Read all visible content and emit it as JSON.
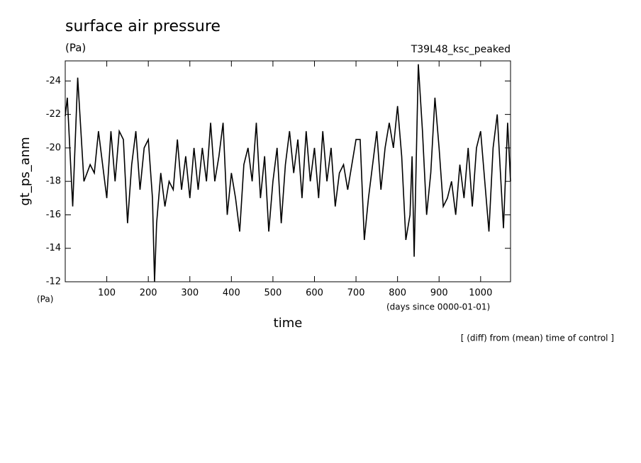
{
  "chart_data": {
    "type": "line",
    "title": "surface air pressure",
    "units": "(Pa)",
    "run_label": "T39L48_ksc_peaked",
    "ylabel": "gt_ps_anm",
    "y_unit_label": "(Pa)",
    "x_unit_label": "(days since 0000-01-01)",
    "xlabel": "time",
    "note": "[ (diff) from (mean) time of control ]",
    "xlim": [
      0,
      1072
    ],
    "ylim": [
      -12,
      -25.2
    ],
    "xticks": [
      100,
      200,
      300,
      400,
      500,
      600,
      700,
      800,
      900,
      1000
    ],
    "yticks": [
      -24,
      -22,
      -20,
      -18,
      -16,
      -14,
      -12
    ],
    "series": [
      {
        "name": "gt_ps_anm",
        "color": "#000000",
        "x": [
          0,
          5,
          18,
          30,
          45,
          60,
          70,
          80,
          90,
          100,
          110,
          120,
          130,
          140,
          150,
          160,
          170,
          180,
          190,
          200,
          210,
          215,
          220,
          230,
          240,
          250,
          260,
          270,
          280,
          290,
          300,
          310,
          320,
          330,
          340,
          350,
          360,
          370,
          380,
          390,
          400,
          410,
          420,
          430,
          440,
          450,
          460,
          470,
          480,
          490,
          500,
          510,
          520,
          530,
          540,
          550,
          560,
          570,
          580,
          590,
          600,
          610,
          620,
          630,
          640,
          650,
          660,
          670,
          680,
          690,
          700,
          710,
          720,
          730,
          740,
          750,
          760,
          770,
          780,
          790,
          800,
          810,
          820,
          830,
          835,
          840,
          850,
          860,
          870,
          880,
          890,
          900,
          910,
          920,
          930,
          940,
          950,
          960,
          970,
          980,
          990,
          1000,
          1010,
          1020,
          1030,
          1040,
          1055,
          1065,
          1072
        ],
        "values": [
          -21.9,
          -23,
          -16.5,
          -24.2,
          -18,
          -19,
          -18.5,
          -21,
          -19,
          -17,
          -21,
          -18,
          -21,
          -20.5,
          -15.5,
          -19,
          -21,
          -17.5,
          -20,
          -20.5,
          -17,
          -12,
          -15.5,
          -18.5,
          -16.5,
          -18,
          -17.5,
          -20.5,
          -17.5,
          -19.5,
          -17,
          -20,
          -17.5,
          -20,
          -18,
          -21.5,
          -18,
          -19.5,
          -21.5,
          -16,
          -18.5,
          -17,
          -15,
          -19,
          -20,
          -18,
          -21.5,
          -17,
          -19.5,
          -15,
          -18,
          -20,
          -15.5,
          -19,
          -21,
          -18.5,
          -20.5,
          -17,
          -21,
          -18,
          -20,
          -17,
          -21,
          -18,
          -20,
          -16.5,
          -18.5,
          -19,
          -17.5,
          -19,
          -20.5,
          -20.5,
          -14.5,
          -17,
          -19,
          -21,
          -17.5,
          -20,
          -21.5,
          -20,
          -22.5,
          -19.5,
          -14.5,
          -16,
          -19.5,
          -13.5,
          -25,
          -21,
          -16,
          -18.5,
          -23,
          -20,
          -16.5,
          -17,
          -18,
          -16,
          -19,
          -17,
          -20,
          -16.5,
          -20,
          -21,
          -18,
          -15,
          -20,
          -22,
          -15.2,
          -21.5,
          -18
        ]
      }
    ]
  }
}
